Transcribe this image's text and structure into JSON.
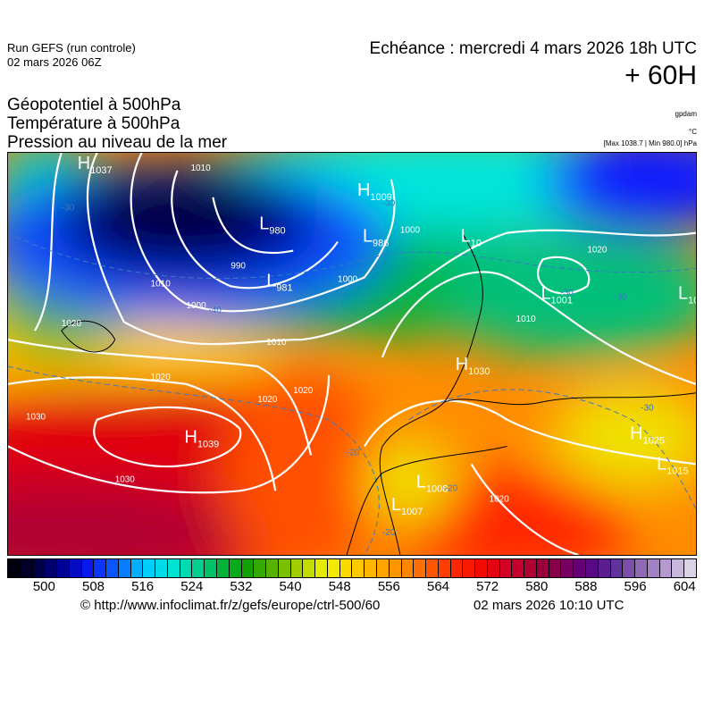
{
  "header": {
    "run": "Run GEFS (run controle)",
    "run_date": "02 mars 2026 06Z",
    "echeance": "Echéance : mercredi 4 mars 2026 18h UTC",
    "lead": "+ 60H"
  },
  "fields": {
    "f1": "Géopotentiel à 500hPa",
    "f2": "Température à 500hPa",
    "f3": "Pression au niveau de la mer",
    "u1": "gpdam",
    "u2": "°C",
    "u3": "[Max 1038.7 | Min 980.0] hPa"
  },
  "pressure_centers": [
    {
      "type": "H",
      "value": "1037"
    },
    {
      "type": "L",
      "value": "980"
    },
    {
      "type": "H",
      "value": "1009"
    },
    {
      "type": "L",
      "value": "986"
    },
    {
      "type": "L",
      "value": "981"
    },
    {
      "type": "L",
      "value": "10"
    },
    {
      "type": "L",
      "value": "1001"
    },
    {
      "type": "L",
      "value": "10"
    },
    {
      "type": "H",
      "value": "1030"
    },
    {
      "type": "H",
      "value": "1039"
    },
    {
      "type": "H",
      "value": "1025"
    },
    {
      "type": "L",
      "value": "1015"
    },
    {
      "type": "L",
      "value": "1008"
    },
    {
      "type": "L",
      "value": "1007"
    }
  ],
  "isobar_labels": [
    "1010",
    "1020",
    "990",
    "1000",
    "1010",
    "1000",
    "1000",
    "1020",
    "1020",
    "1030",
    "1010",
    "1020",
    "1020",
    "1030",
    "1010",
    "1020"
  ],
  "temp_labels": [
    "-30",
    "-30",
    "-30",
    "-40",
    "-30",
    "-20",
    "-20",
    "-20",
    "-30"
  ],
  "colorbar": {
    "min": 494,
    "max": 606,
    "step": 2,
    "ticks": [
      "500",
      "508",
      "516",
      "524",
      "532",
      "540",
      "548",
      "556",
      "564",
      "572",
      "580",
      "588",
      "596",
      "604"
    ],
    "anchors": [
      "#000010",
      "#00004a",
      "#0000a0",
      "#0a1eff",
      "#0a64ff",
      "#00c8ff",
      "#00e6dc",
      "#00d296",
      "#00b43c",
      "#14a000",
      "#5ab400",
      "#aad200",
      "#f0f000",
      "#ffd200",
      "#ffaa00",
      "#ff8c00",
      "#ff5a00",
      "#ff2800",
      "#f00a00",
      "#d20028",
      "#aa0032",
      "#800050",
      "#5a0080",
      "#5a2896",
      "#8c64b4",
      "#b496d2",
      "#dcd2e6"
    ]
  },
  "footer": {
    "copyright": "© http://www.infoclimat.fr/z/gefs/europe/ctrl-500/60",
    "generated": "02 mars 2026 10:10 UTC"
  }
}
